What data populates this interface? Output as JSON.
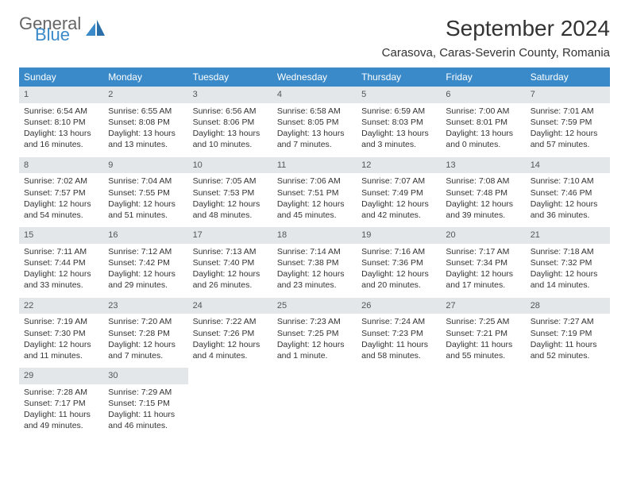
{
  "brand": {
    "part1": "General",
    "part2": "Blue"
  },
  "title": "September 2024",
  "location": "Carasova, Caras-Severin County, Romania",
  "header_bg": "#3a8ac9",
  "daynum_bg": "#e3e7ea",
  "weekdays": [
    "Sunday",
    "Monday",
    "Tuesday",
    "Wednesday",
    "Thursday",
    "Friday",
    "Saturday"
  ],
  "weeks": [
    [
      {
        "n": "1",
        "sr": "Sunrise: 6:54 AM",
        "ss": "Sunset: 8:10 PM",
        "d1": "Daylight: 13 hours",
        "d2": "and 16 minutes."
      },
      {
        "n": "2",
        "sr": "Sunrise: 6:55 AM",
        "ss": "Sunset: 8:08 PM",
        "d1": "Daylight: 13 hours",
        "d2": "and 13 minutes."
      },
      {
        "n": "3",
        "sr": "Sunrise: 6:56 AM",
        "ss": "Sunset: 8:06 PM",
        "d1": "Daylight: 13 hours",
        "d2": "and 10 minutes."
      },
      {
        "n": "4",
        "sr": "Sunrise: 6:58 AM",
        "ss": "Sunset: 8:05 PM",
        "d1": "Daylight: 13 hours",
        "d2": "and 7 minutes."
      },
      {
        "n": "5",
        "sr": "Sunrise: 6:59 AM",
        "ss": "Sunset: 8:03 PM",
        "d1": "Daylight: 13 hours",
        "d2": "and 3 minutes."
      },
      {
        "n": "6",
        "sr": "Sunrise: 7:00 AM",
        "ss": "Sunset: 8:01 PM",
        "d1": "Daylight: 13 hours",
        "d2": "and 0 minutes."
      },
      {
        "n": "7",
        "sr": "Sunrise: 7:01 AM",
        "ss": "Sunset: 7:59 PM",
        "d1": "Daylight: 12 hours",
        "d2": "and 57 minutes."
      }
    ],
    [
      {
        "n": "8",
        "sr": "Sunrise: 7:02 AM",
        "ss": "Sunset: 7:57 PM",
        "d1": "Daylight: 12 hours",
        "d2": "and 54 minutes."
      },
      {
        "n": "9",
        "sr": "Sunrise: 7:04 AM",
        "ss": "Sunset: 7:55 PM",
        "d1": "Daylight: 12 hours",
        "d2": "and 51 minutes."
      },
      {
        "n": "10",
        "sr": "Sunrise: 7:05 AM",
        "ss": "Sunset: 7:53 PM",
        "d1": "Daylight: 12 hours",
        "d2": "and 48 minutes."
      },
      {
        "n": "11",
        "sr": "Sunrise: 7:06 AM",
        "ss": "Sunset: 7:51 PM",
        "d1": "Daylight: 12 hours",
        "d2": "and 45 minutes."
      },
      {
        "n": "12",
        "sr": "Sunrise: 7:07 AM",
        "ss": "Sunset: 7:49 PM",
        "d1": "Daylight: 12 hours",
        "d2": "and 42 minutes."
      },
      {
        "n": "13",
        "sr": "Sunrise: 7:08 AM",
        "ss": "Sunset: 7:48 PM",
        "d1": "Daylight: 12 hours",
        "d2": "and 39 minutes."
      },
      {
        "n": "14",
        "sr": "Sunrise: 7:10 AM",
        "ss": "Sunset: 7:46 PM",
        "d1": "Daylight: 12 hours",
        "d2": "and 36 minutes."
      }
    ],
    [
      {
        "n": "15",
        "sr": "Sunrise: 7:11 AM",
        "ss": "Sunset: 7:44 PM",
        "d1": "Daylight: 12 hours",
        "d2": "and 33 minutes."
      },
      {
        "n": "16",
        "sr": "Sunrise: 7:12 AM",
        "ss": "Sunset: 7:42 PM",
        "d1": "Daylight: 12 hours",
        "d2": "and 29 minutes."
      },
      {
        "n": "17",
        "sr": "Sunrise: 7:13 AM",
        "ss": "Sunset: 7:40 PM",
        "d1": "Daylight: 12 hours",
        "d2": "and 26 minutes."
      },
      {
        "n": "18",
        "sr": "Sunrise: 7:14 AM",
        "ss": "Sunset: 7:38 PM",
        "d1": "Daylight: 12 hours",
        "d2": "and 23 minutes."
      },
      {
        "n": "19",
        "sr": "Sunrise: 7:16 AM",
        "ss": "Sunset: 7:36 PM",
        "d1": "Daylight: 12 hours",
        "d2": "and 20 minutes."
      },
      {
        "n": "20",
        "sr": "Sunrise: 7:17 AM",
        "ss": "Sunset: 7:34 PM",
        "d1": "Daylight: 12 hours",
        "d2": "and 17 minutes."
      },
      {
        "n": "21",
        "sr": "Sunrise: 7:18 AM",
        "ss": "Sunset: 7:32 PM",
        "d1": "Daylight: 12 hours",
        "d2": "and 14 minutes."
      }
    ],
    [
      {
        "n": "22",
        "sr": "Sunrise: 7:19 AM",
        "ss": "Sunset: 7:30 PM",
        "d1": "Daylight: 12 hours",
        "d2": "and 11 minutes."
      },
      {
        "n": "23",
        "sr": "Sunrise: 7:20 AM",
        "ss": "Sunset: 7:28 PM",
        "d1": "Daylight: 12 hours",
        "d2": "and 7 minutes."
      },
      {
        "n": "24",
        "sr": "Sunrise: 7:22 AM",
        "ss": "Sunset: 7:26 PM",
        "d1": "Daylight: 12 hours",
        "d2": "and 4 minutes."
      },
      {
        "n": "25",
        "sr": "Sunrise: 7:23 AM",
        "ss": "Sunset: 7:25 PM",
        "d1": "Daylight: 12 hours",
        "d2": "and 1 minute."
      },
      {
        "n": "26",
        "sr": "Sunrise: 7:24 AM",
        "ss": "Sunset: 7:23 PM",
        "d1": "Daylight: 11 hours",
        "d2": "and 58 minutes."
      },
      {
        "n": "27",
        "sr": "Sunrise: 7:25 AM",
        "ss": "Sunset: 7:21 PM",
        "d1": "Daylight: 11 hours",
        "d2": "and 55 minutes."
      },
      {
        "n": "28",
        "sr": "Sunrise: 7:27 AM",
        "ss": "Sunset: 7:19 PM",
        "d1": "Daylight: 11 hours",
        "d2": "and 52 minutes."
      }
    ],
    [
      {
        "n": "29",
        "sr": "Sunrise: 7:28 AM",
        "ss": "Sunset: 7:17 PM",
        "d1": "Daylight: 11 hours",
        "d2": "and 49 minutes."
      },
      {
        "n": "30",
        "sr": "Sunrise: 7:29 AM",
        "ss": "Sunset: 7:15 PM",
        "d1": "Daylight: 11 hours",
        "d2": "and 46 minutes."
      },
      null,
      null,
      null,
      null,
      null
    ]
  ]
}
